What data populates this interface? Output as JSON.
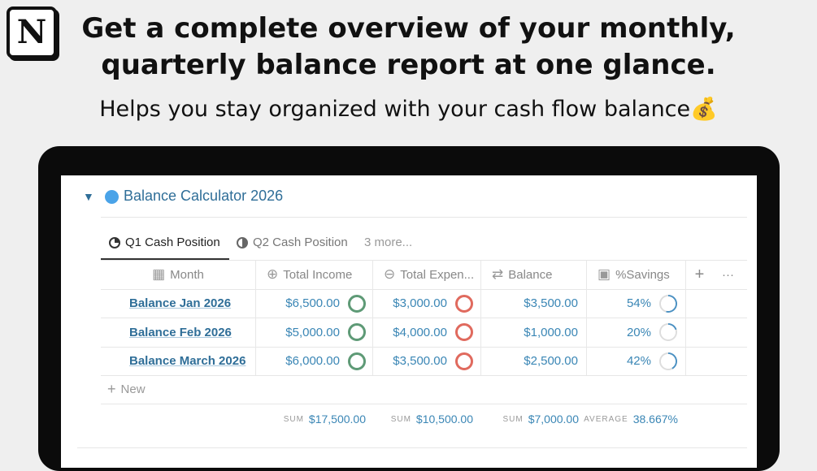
{
  "headline": [
    "Get a complete overview of your monthly,",
    "quarterly balance report at one glance."
  ],
  "subtitle": "Helps you stay organized with your cash flow balance",
  "subtitle_emoji": "💰",
  "logo": "N",
  "page": {
    "title": "Balance Calculator 2026",
    "toggle": "▼"
  },
  "tabs": [
    {
      "label": "Q1 Cash Position",
      "active": true
    },
    {
      "label": "Q2 Cash Position"
    },
    {
      "label": "3 more..."
    }
  ],
  "columns": [
    "Month",
    "Total Income",
    "Total Expen...",
    "Balance",
    "%Savings"
  ],
  "add_column": "+",
  "more": "···",
  "rows": [
    {
      "month": "Balance Jan 2026",
      "income": "$6,500.00",
      "expenses": "$3,000.00",
      "balance": "$3,500.00",
      "savings": "54%",
      "savings_value": 54
    },
    {
      "month": "Balance Feb 2026",
      "income": "$5,000.00",
      "expenses": "$4,000.00",
      "balance": "$1,000.00",
      "savings": "20%",
      "savings_value": 20
    },
    {
      "month": "Balance March 2026",
      "income": "$6,000.00",
      "expenses": "$3,500.00",
      "balance": "$2,500.00",
      "savings": "42%",
      "savings_value": 42
    }
  ],
  "new_label": "New",
  "footer": {
    "income_label": "SUM",
    "income": "$17,500.00",
    "expenses_label": "SUM",
    "expenses": "$10,500.00",
    "balance_label": "SUM",
    "balance": "$7,000.00",
    "savings_label": "AVERAGE",
    "savings": "38.667%"
  },
  "colors": {
    "accent": "#3a86b5",
    "income_ring": "#5e9a76",
    "expense_ring": "#e06a5e",
    "savings_ring": "#4a90c2"
  }
}
